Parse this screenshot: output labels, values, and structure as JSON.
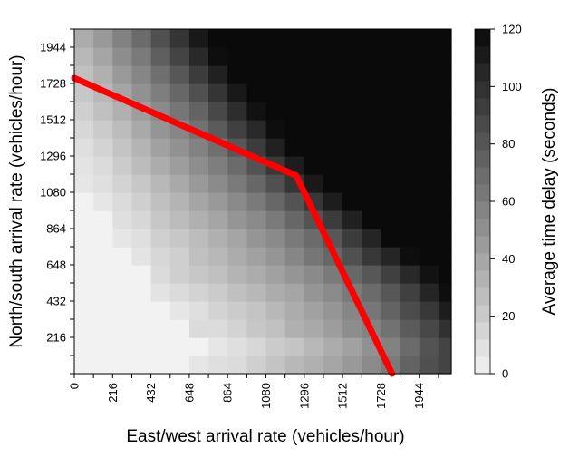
{
  "chart_data": {
    "type": "heatmap",
    "xlabel": "East/west arrival rate (vehicles/hour)",
    "ylabel": "North/south arrival rate (vehicles/hour)",
    "x_ticks": [
      "0",
      "216",
      "432",
      "648",
      "864",
      "1080",
      "1296",
      "1512",
      "1728",
      "1944"
    ],
    "y_ticks": [
      "216",
      "432",
      "648",
      "864",
      "1080",
      "1296",
      "1512",
      "1728",
      "1944"
    ],
    "xlim": [
      0,
      2124
    ],
    "ylim": [
      0,
      2052
    ],
    "colorbar": {
      "label": "Average time delay (seconds)",
      "ticks": [
        "0",
        "20",
        "40",
        "60",
        "80",
        "100",
        "120"
      ],
      "range": [
        0,
        120
      ],
      "steps": 20,
      "color_low": "#f2f2f2",
      "color_high": "#0a0a0a"
    },
    "cell_step": 108,
    "row_order": "bottom_to_top",
    "z": [
      [
        0,
        0,
        0,
        0,
        0,
        0,
        6,
        10,
        12,
        18,
        24,
        30,
        34,
        40,
        46,
        54,
        62,
        74,
        84,
        90
      ],
      [
        0,
        0,
        0,
        0,
        0,
        0,
        0,
        6,
        10,
        14,
        20,
        24,
        30,
        36,
        42,
        50,
        58,
        70,
        82,
        90
      ],
      [
        0,
        0,
        0,
        0,
        0,
        0,
        12,
        12,
        16,
        22,
        26,
        34,
        38,
        44,
        52,
        58,
        66,
        78,
        88,
        100
      ],
      [
        0,
        0,
        0,
        0,
        0,
        6,
        10,
        16,
        20,
        24,
        30,
        36,
        42,
        48,
        56,
        64,
        74,
        86,
        96,
        110
      ],
      [
        0,
        0,
        0,
        0,
        8,
        12,
        16,
        20,
        26,
        30,
        36,
        40,
        48,
        54,
        62,
        70,
        80,
        92,
        106,
        118
      ],
      [
        0,
        0,
        0,
        0,
        12,
        18,
        22,
        26,
        32,
        36,
        42,
        48,
        54,
        62,
        72,
        80,
        92,
        104,
        116,
        120
      ],
      [
        0,
        0,
        0,
        8,
        14,
        18,
        26,
        30,
        36,
        42,
        48,
        56,
        64,
        72,
        84,
        96,
        106,
        118,
        120,
        120
      ],
      [
        0,
        0,
        6,
        10,
        18,
        22,
        28,
        34,
        40,
        48,
        54,
        62,
        70,
        80,
        94,
        106,
        120,
        120,
        120,
        120
      ],
      [
        0,
        0,
        10,
        14,
        22,
        28,
        34,
        40,
        48,
        54,
        62,
        72,
        82,
        94,
        108,
        120,
        120,
        120,
        120,
        120
      ],
      [
        0,
        6,
        12,
        18,
        26,
        32,
        40,
        46,
        54,
        62,
        72,
        82,
        96,
        110,
        120,
        120,
        120,
        120,
        120,
        120
      ],
      [
        6,
        10,
        16,
        22,
        30,
        38,
        46,
        54,
        62,
        72,
        84,
        98,
        112,
        120,
        120,
        120,
        120,
        120,
        120,
        120
      ],
      [
        8,
        12,
        20,
        28,
        36,
        44,
        52,
        60,
        70,
        82,
        96,
        110,
        120,
        120,
        120,
        120,
        120,
        120,
        120,
        120
      ],
      [
        10,
        16,
        24,
        32,
        42,
        50,
        58,
        68,
        80,
        94,
        108,
        120,
        120,
        120,
        120,
        120,
        120,
        120,
        120,
        120
      ],
      [
        14,
        20,
        28,
        38,
        48,
        56,
        66,
        78,
        92,
        104,
        118,
        120,
        120,
        120,
        120,
        120,
        120,
        120,
        120,
        120
      ],
      [
        18,
        26,
        34,
        44,
        54,
        64,
        74,
        88,
        102,
        116,
        120,
        120,
        120,
        120,
        120,
        120,
        120,
        120,
        120,
        120
      ],
      [
        22,
        30,
        40,
        50,
        60,
        72,
        84,
        98,
        112,
        120,
        120,
        120,
        120,
        120,
        120,
        120,
        120,
        120,
        120,
        120
      ],
      [
        26,
        34,
        46,
        56,
        68,
        80,
        94,
        108,
        120,
        120,
        120,
        120,
        120,
        120,
        120,
        120,
        120,
        120,
        120,
        120
      ],
      [
        30,
        40,
        52,
        62,
        76,
        90,
        104,
        118,
        120,
        120,
        120,
        120,
        120,
        120,
        120,
        120,
        120,
        120,
        120,
        120
      ],
      [
        36,
        46,
        58,
        70,
        84,
        98,
        112,
        120,
        120,
        120,
        120,
        120,
        120,
        120,
        120,
        120,
        120,
        120,
        120,
        120
      ]
    ],
    "series": [
      {
        "type": "line",
        "color": "#ff0000",
        "points": [
          [
            0,
            1760
          ],
          [
            1250,
            1180
          ],
          [
            1790,
            0
          ]
        ]
      }
    ]
  }
}
